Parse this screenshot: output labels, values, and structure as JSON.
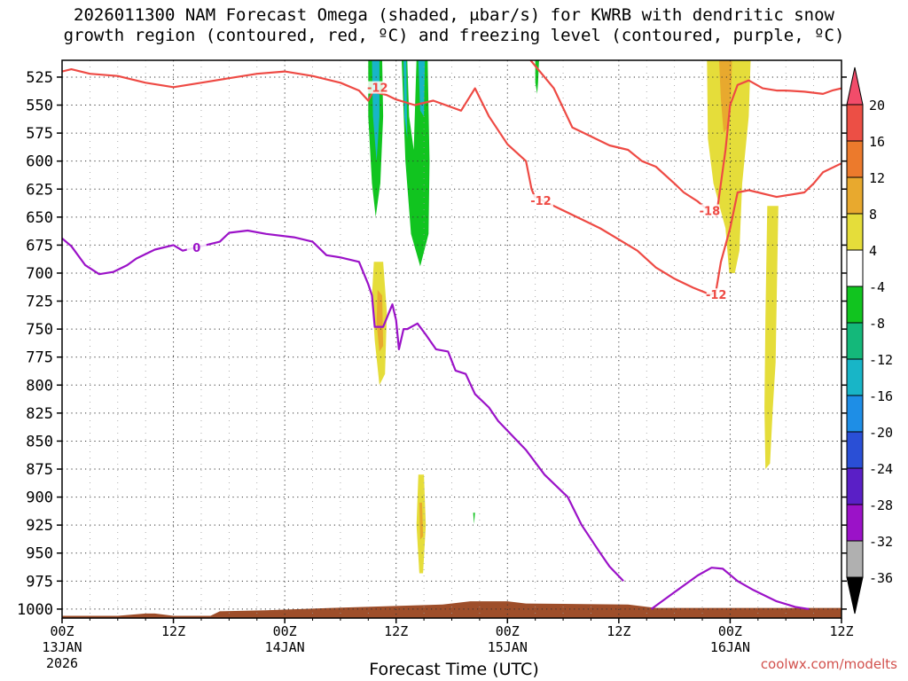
{
  "chart_data": {
    "type": "heatmap",
    "title_line1": "2026011300 NAM Forecast Omega (shaded, μbar/s) for KWRB with dendritic snow",
    "title_line2": "growth region (contoured, red, ºC) and freezing level (contoured, purple, ºC)",
    "xlabel": "Forecast Time (UTC)",
    "credit": "coolwx.com/modelts",
    "x_range_hours": [
      0,
      84
    ],
    "x_ticks": [
      {
        "h": 0,
        "l1": "00Z",
        "l2": "13JAN",
        "l3": "2026"
      },
      {
        "h": 12,
        "l1": "12Z",
        "l2": "",
        "l3": ""
      },
      {
        "h": 24,
        "l1": "00Z",
        "l2": "14JAN",
        "l3": ""
      },
      {
        "h": 36,
        "l1": "12Z",
        "l2": "",
        "l3": ""
      },
      {
        "h": 48,
        "l1": "00Z",
        "l2": "15JAN",
        "l3": ""
      },
      {
        "h": 60,
        "l1": "12Z",
        "l2": "",
        "l3": ""
      },
      {
        "h": 72,
        "l1": "00Z",
        "l2": "16JAN",
        "l3": ""
      },
      {
        "h": 84,
        "l1": "12Z",
        "l2": "",
        "l3": ""
      }
    ],
    "y_ticks_mb": [
      525,
      550,
      575,
      600,
      625,
      650,
      675,
      700,
      725,
      750,
      775,
      800,
      825,
      850,
      875,
      900,
      925,
      950,
      975,
      1000
    ],
    "y_range_mb": [
      510,
      1008
    ],
    "grid": true,
    "colorbar": {
      "labels": [
        "20",
        "16",
        "12",
        "8",
        "4",
        "-4",
        "-8",
        "-12",
        "-16",
        "-20",
        "-24",
        "-28",
        "-32",
        "-36"
      ],
      "colors": [
        "#f24c6a",
        "#ec4f45",
        "#ec7a2c",
        "#e8a92e",
        "#e5dd3a",
        "#ffffff",
        "#11c41f",
        "#14b87a",
        "#18b5c7",
        "#1e8ee6",
        "#2a4fd6",
        "#5a1fc6",
        "#9b12c8",
        "#b0b0b0",
        "#000000"
      ]
    },
    "omega_regions": [
      {
        "color": "#11c41f",
        "points": [
          [
            33.0,
            510
          ],
          [
            34.5,
            510
          ],
          [
            34.6,
            560
          ],
          [
            34.3,
            620
          ],
          [
            33.8,
            650
          ],
          [
            33.4,
            620
          ],
          [
            33.0,
            560
          ]
        ]
      },
      {
        "color": "#18b5c7",
        "points": [
          [
            33.4,
            510
          ],
          [
            34.2,
            510
          ],
          [
            34.2,
            560
          ],
          [
            33.9,
            600
          ],
          [
            33.5,
            560
          ]
        ]
      },
      {
        "color": "#11c41f",
        "points": [
          [
            36.6,
            510
          ],
          [
            37.2,
            510
          ],
          [
            37.4,
            560
          ],
          [
            37.9,
            590
          ],
          [
            38.2,
            510
          ],
          [
            39.4,
            510
          ],
          [
            39.6,
            600
          ],
          [
            39.5,
            665
          ],
          [
            38.6,
            694
          ],
          [
            37.6,
            665
          ],
          [
            37.0,
            600
          ]
        ]
      },
      {
        "color": "#18b5c7",
        "points": [
          [
            38.4,
            510
          ],
          [
            39.1,
            510
          ],
          [
            39.0,
            560
          ],
          [
            38.6,
            555
          ]
        ]
      },
      {
        "color": "#18b5c7",
        "points": [
          [
            36.8,
            510
          ],
          [
            37.1,
            510
          ],
          [
            37.2,
            580
          ],
          [
            36.9,
            560
          ]
        ]
      },
      {
        "color": "#11c41f",
        "points": [
          [
            51.0,
            510
          ],
          [
            51.4,
            510
          ],
          [
            51.3,
            530
          ],
          [
            51.2,
            540
          ],
          [
            51.0,
            530
          ]
        ]
      },
      {
        "color": "#11c41f",
        "points": [
          [
            44.3,
            914
          ],
          [
            44.5,
            914
          ],
          [
            44.4,
            924
          ]
        ]
      },
      {
        "color": "#e5dd3a",
        "points": [
          [
            33.6,
            690
          ],
          [
            34.6,
            690
          ],
          [
            35.0,
            735
          ],
          [
            34.8,
            790
          ],
          [
            34.2,
            800
          ],
          [
            33.7,
            760
          ],
          [
            33.4,
            720
          ]
        ]
      },
      {
        "color": "#e8a92e",
        "points": [
          [
            34.0,
            715
          ],
          [
            34.5,
            720
          ],
          [
            34.6,
            765
          ],
          [
            34.2,
            770
          ],
          [
            33.9,
            745
          ]
        ]
      },
      {
        "color": "#e5dd3a",
        "points": [
          [
            38.4,
            880
          ],
          [
            39.0,
            880
          ],
          [
            39.2,
            925
          ],
          [
            38.9,
            968
          ],
          [
            38.5,
            968
          ],
          [
            38.2,
            925
          ]
        ]
      },
      {
        "color": "#e8a92e",
        "points": [
          [
            38.5,
            905
          ],
          [
            38.8,
            905
          ],
          [
            38.9,
            935
          ],
          [
            38.6,
            938
          ]
        ]
      },
      {
        "color": "#e5dd3a",
        "points": [
          [
            69.5,
            510
          ],
          [
            74.2,
            510
          ],
          [
            74.0,
            560
          ],
          [
            73.3,
            620
          ],
          [
            73.0,
            680
          ],
          [
            72.5,
            700
          ],
          [
            71.9,
            700
          ],
          [
            71.5,
            660
          ],
          [
            70.2,
            620
          ],
          [
            69.6,
            580
          ]
        ]
      },
      {
        "color": "#e8a92e",
        "points": [
          [
            70.8,
            510
          ],
          [
            72.2,
            510
          ],
          [
            72.1,
            540
          ],
          [
            71.7,
            570
          ],
          [
            71.3,
            575
          ],
          [
            71.0,
            545
          ]
        ]
      },
      {
        "color": "#e5dd3a",
        "points": [
          [
            76.0,
            640
          ],
          [
            77.2,
            640
          ],
          [
            76.9,
            780
          ],
          [
            76.6,
            820
          ],
          [
            76.3,
            870
          ],
          [
            75.8,
            875
          ],
          [
            75.7,
            820
          ],
          [
            75.8,
            740
          ]
        ]
      }
    ],
    "dgz_contours": [
      {
        "label": "-12",
        "label_at": [
          34.0,
          535
        ],
        "points": [
          [
            0,
            520
          ],
          [
            1,
            518
          ],
          [
            3,
            522
          ],
          [
            6,
            524
          ],
          [
            9,
            530
          ],
          [
            12,
            534
          ],
          [
            15,
            530
          ],
          [
            18,
            526
          ],
          [
            21,
            522
          ],
          [
            24,
            520
          ],
          [
            27,
            524
          ],
          [
            30,
            530
          ],
          [
            32,
            537
          ],
          [
            33,
            546
          ],
          [
            33.5,
            538
          ],
          [
            35,
            541
          ],
          [
            36,
            545
          ],
          [
            38,
            550
          ],
          [
            40,
            546
          ],
          [
            42,
            552
          ],
          [
            43,
            555
          ],
          [
            44.5,
            535
          ],
          [
            46,
            560
          ],
          [
            48,
            585
          ],
          [
            50,
            600
          ],
          [
            50.6,
            625
          ],
          [
            51.0,
            633
          ]
        ]
      },
      {
        "label": "-12",
        "label_at": [
          70.5,
          720
        ],
        "points": [
          [
            50.5,
            510
          ],
          [
            53,
            535
          ],
          [
            55,
            570
          ],
          [
            57,
            578
          ],
          [
            59,
            586
          ],
          [
            61,
            590
          ],
          [
            62.5,
            600
          ],
          [
            64,
            605
          ],
          [
            66,
            620
          ],
          [
            67,
            628
          ],
          [
            68.5,
            636
          ],
          [
            69.5,
            643
          ]
        ]
      },
      {
        "label": "-12",
        "label_at": [
          70.5,
          720
        ],
        "points": [
          [
            51.0,
            632
          ],
          [
            53.0,
            640
          ],
          [
            56.0,
            652
          ],
          [
            58.0,
            660
          ],
          [
            60.0,
            670
          ],
          [
            62.0,
            680
          ],
          [
            64.0,
            695
          ],
          [
            66.0,
            705
          ],
          [
            68.0,
            713
          ],
          [
            69.5,
            718
          ],
          [
            70.0,
            719
          ],
          [
            70.5,
            715
          ],
          [
            71.0,
            690
          ],
          [
            72.0,
            660
          ],
          [
            72.8,
            628
          ],
          [
            74.0,
            626
          ],
          [
            77.0,
            632
          ],
          [
            80.0,
            628
          ],
          [
            81.0,
            620
          ],
          [
            82.0,
            610
          ],
          [
            84.0,
            602
          ]
        ]
      },
      {
        "label": "-18",
        "label_at": [
          69.8,
          645
        ],
        "points": [
          [
            70.5,
            650
          ],
          [
            71.0,
            620
          ],
          [
            71.5,
            590
          ],
          [
            72.0,
            550
          ],
          [
            72.8,
            532
          ],
          [
            74.0,
            528
          ],
          [
            75.5,
            535
          ],
          [
            77,
            537
          ],
          [
            78,
            537
          ],
          [
            80,
            538
          ],
          [
            82,
            540
          ],
          [
            83,
            537
          ],
          [
            84,
            535
          ]
        ]
      }
    ],
    "freezing_contours": [
      {
        "label": "0",
        "label_at": [
          14.5,
          678
        ],
        "points": [
          [
            0,
            669
          ],
          [
            1,
            676
          ],
          [
            2.5,
            693
          ],
          [
            4,
            701
          ],
          [
            5.5,
            699
          ],
          [
            7,
            693
          ],
          [
            8,
            687
          ],
          [
            10,
            679
          ],
          [
            12,
            675
          ],
          [
            13,
            680
          ],
          [
            15,
            676
          ],
          [
            17,
            672
          ],
          [
            18,
            664
          ],
          [
            20,
            662
          ],
          [
            22,
            665
          ],
          [
            25,
            668
          ],
          [
            27,
            672
          ],
          [
            28.5,
            684
          ],
          [
            30,
            686
          ],
          [
            32,
            690
          ],
          [
            33,
            710
          ],
          [
            33.4,
            720
          ],
          [
            33.7,
            748
          ],
          [
            34.6,
            748
          ],
          [
            35.6,
            728
          ],
          [
            36.0,
            742
          ],
          [
            36.3,
            768
          ],
          [
            36.8,
            750
          ],
          [
            37.2,
            750
          ],
          [
            38.3,
            745
          ],
          [
            39.2,
            755
          ],
          [
            40.3,
            768
          ],
          [
            41.6,
            770
          ],
          [
            42.4,
            787
          ],
          [
            43.5,
            790
          ],
          [
            44.5,
            808
          ],
          [
            46.0,
            820
          ],
          [
            47.0,
            832
          ],
          [
            50.0,
            858
          ],
          [
            52.0,
            880
          ],
          [
            54.5,
            900
          ],
          [
            56.0,
            925
          ],
          [
            58.0,
            950
          ],
          [
            59.0,
            962
          ],
          [
            60.5,
            975
          ]
        ]
      },
      {
        "label": "",
        "label_at": [
          0,
          0
        ],
        "points": [
          [
            63.5,
            1000
          ],
          [
            66.0,
            985
          ],
          [
            68.5,
            970
          ],
          [
            70.0,
            963
          ],
          [
            71.2,
            964
          ],
          [
            72.8,
            975
          ],
          [
            74.5,
            983
          ],
          [
            77.0,
            993
          ],
          [
            79.0,
            998
          ],
          [
            80.5,
            1000
          ]
        ]
      }
    ],
    "terrain": {
      "color": "#9e4e2a",
      "top_mb": [
        [
          0,
          1006
        ],
        [
          6,
          1006
        ],
        [
          9,
          1004
        ],
        [
          10,
          1004
        ],
        [
          12,
          1006
        ],
        [
          16,
          1006
        ],
        [
          17,
          1002
        ],
        [
          22,
          1001
        ],
        [
          29,
          999
        ],
        [
          41,
          996
        ],
        [
          44,
          993
        ],
        [
          48,
          993
        ],
        [
          50,
          995
        ],
        [
          61,
          996
        ],
        [
          64,
          999
        ],
        [
          84,
          999
        ]
      ]
    }
  }
}
